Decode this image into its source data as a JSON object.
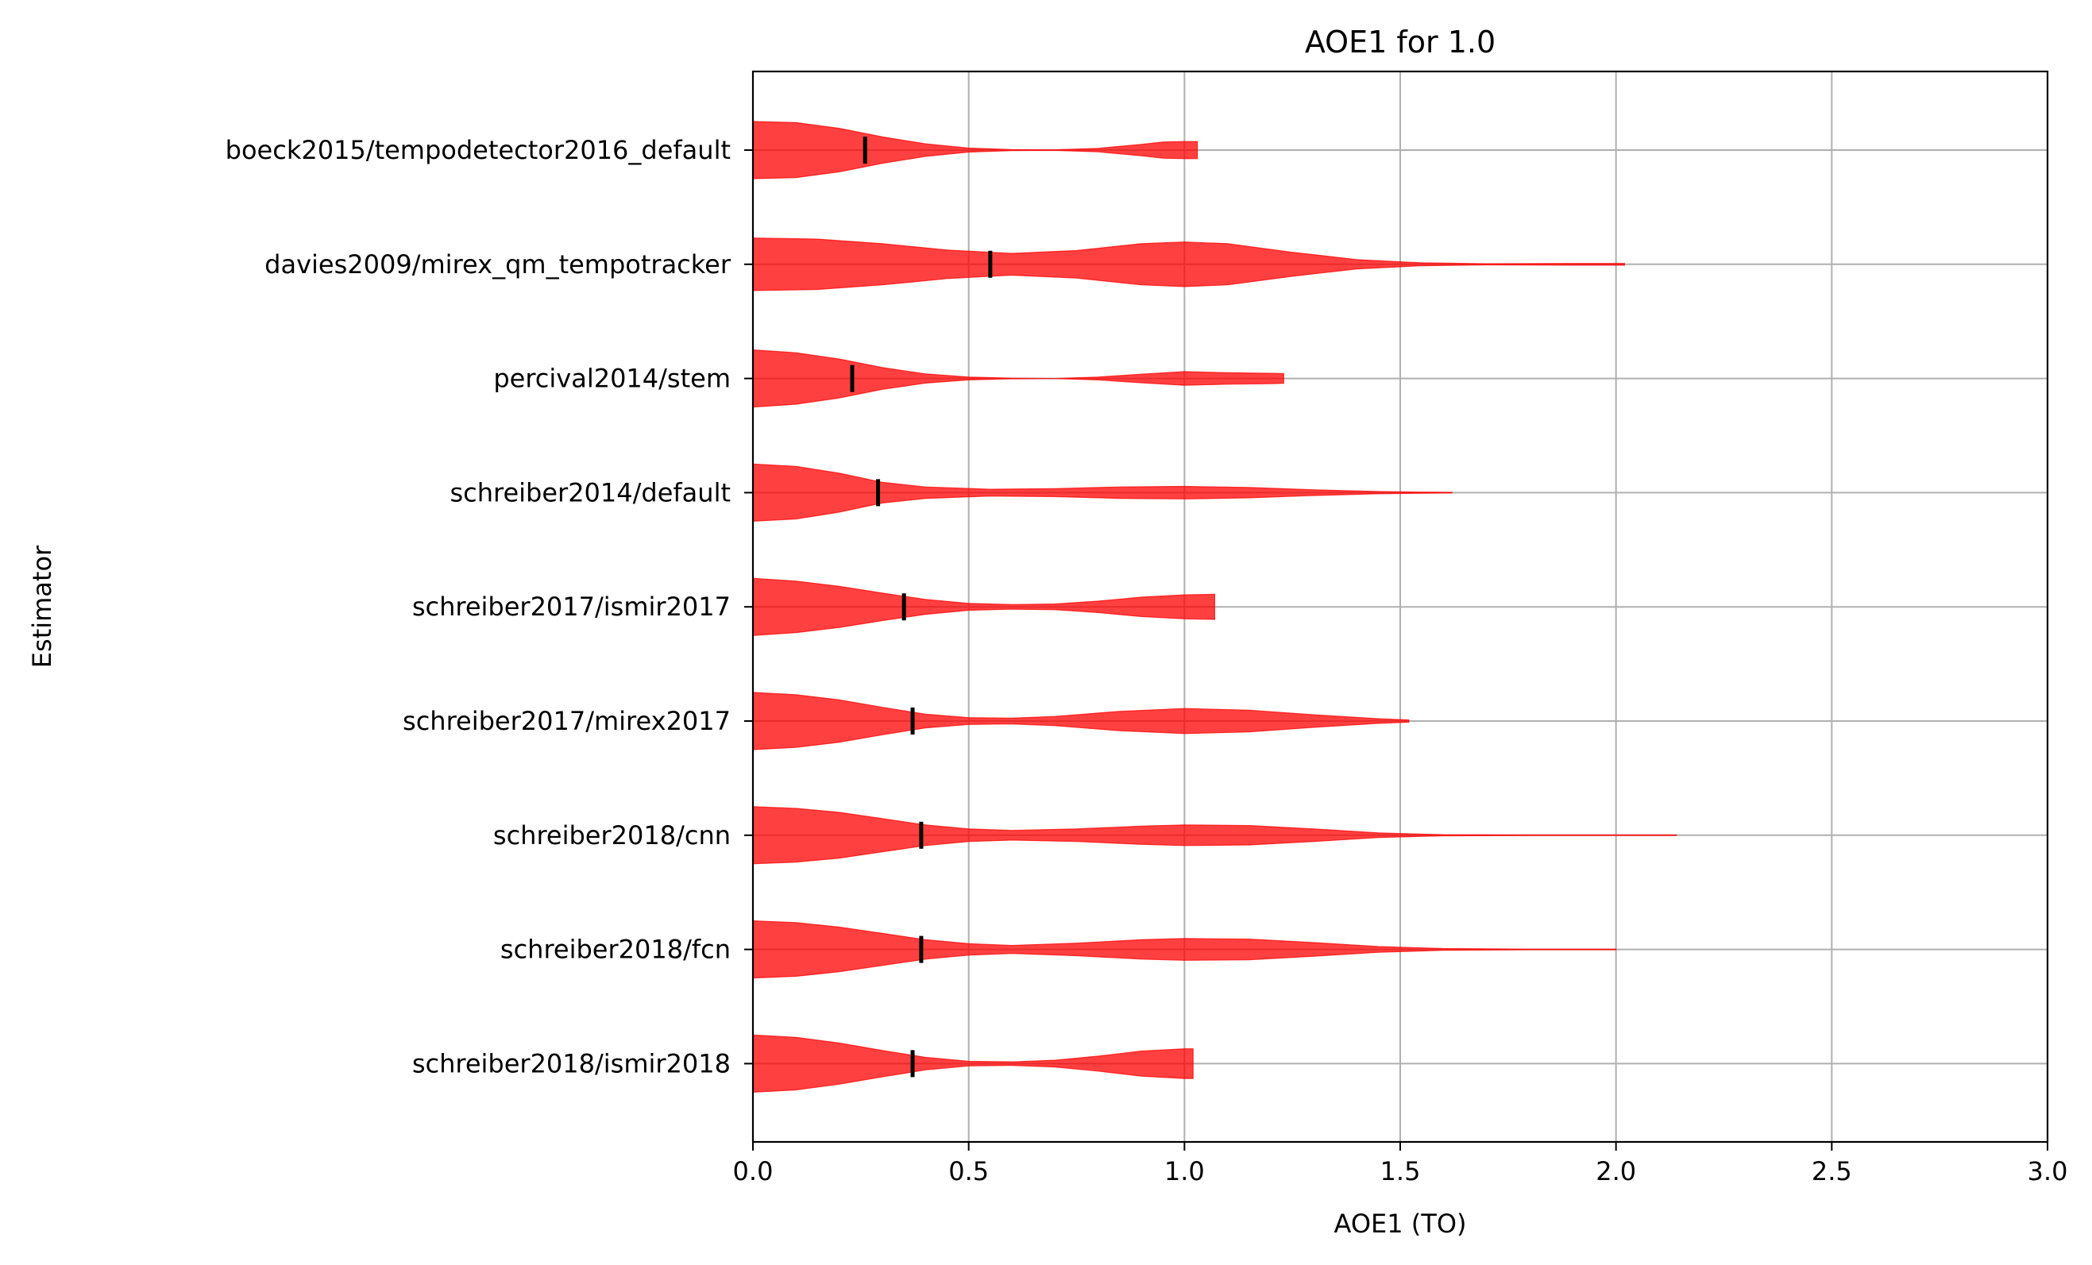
{
  "chart_data": {
    "type": "violin",
    "title": "AOE1 for 1.0",
    "xlabel": "AOE1 (TO)",
    "ylabel": "Estimator",
    "xlim": [
      0.0,
      3.0
    ],
    "x_ticks": [
      "0.0",
      "0.5",
      "1.0",
      "1.5",
      "2.0",
      "2.5",
      "3.0"
    ],
    "grid": true,
    "orientation": "horizontal",
    "colors": {
      "violin": "#ff0000",
      "marker": "#000000",
      "grid": "#b0b0b0"
    },
    "categories": [
      "boeck2015/tempodetector2016_default",
      "davies2009/mirex_qm_tempotracker",
      "percival2014/stem",
      "schreiber2014/default",
      "schreiber2017/ismir2017",
      "schreiber2017/mirex2017",
      "schreiber2018/cnn",
      "schreiber2018/fcn",
      "schreiber2018/ismir2018"
    ],
    "series": [
      {
        "label": "boeck2015/tempodetector2016_default",
        "min": 0.0,
        "max": 1.03,
        "mean": 0.26,
        "density": [
          [
            0.0,
            1.0
          ],
          [
            0.1,
            0.96
          ],
          [
            0.2,
            0.76
          ],
          [
            0.3,
            0.46
          ],
          [
            0.4,
            0.22
          ],
          [
            0.5,
            0.07
          ],
          [
            0.6,
            0.02
          ],
          [
            0.7,
            0.01
          ],
          [
            0.8,
            0.06
          ],
          [
            0.9,
            0.2
          ],
          [
            0.95,
            0.28
          ],
          [
            1.0,
            0.3
          ],
          [
            1.03,
            0.3
          ]
        ]
      },
      {
        "label": "davies2009/mirex_qm_tempotracker",
        "min": 0.0,
        "max": 2.02,
        "mean": 0.55,
        "density": [
          [
            0.0,
            0.92
          ],
          [
            0.15,
            0.88
          ],
          [
            0.3,
            0.72
          ],
          [
            0.45,
            0.5
          ],
          [
            0.6,
            0.38
          ],
          [
            0.75,
            0.48
          ],
          [
            0.9,
            0.72
          ],
          [
            1.0,
            0.78
          ],
          [
            1.1,
            0.72
          ],
          [
            1.25,
            0.42
          ],
          [
            1.4,
            0.16
          ],
          [
            1.55,
            0.05
          ],
          [
            1.7,
            0.02
          ],
          [
            1.9,
            0.03
          ],
          [
            2.02,
            0.03
          ]
        ]
      },
      {
        "label": "percival2014/stem",
        "min": 0.0,
        "max": 1.23,
        "mean": 0.23,
        "density": [
          [
            0.0,
            1.0
          ],
          [
            0.1,
            0.9
          ],
          [
            0.2,
            0.68
          ],
          [
            0.3,
            0.38
          ],
          [
            0.4,
            0.16
          ],
          [
            0.5,
            0.05
          ],
          [
            0.6,
            0.01
          ],
          [
            0.7,
            0.0
          ],
          [
            0.8,
            0.05
          ],
          [
            0.9,
            0.15
          ],
          [
            1.0,
            0.24
          ],
          [
            1.1,
            0.2
          ],
          [
            1.2,
            0.18
          ],
          [
            1.23,
            0.17
          ]
        ]
      },
      {
        "label": "schreiber2014/default",
        "min": 0.0,
        "max": 1.62,
        "mean": 0.29,
        "density": [
          [
            0.0,
            1.0
          ],
          [
            0.1,
            0.92
          ],
          [
            0.2,
            0.68
          ],
          [
            0.3,
            0.36
          ],
          [
            0.4,
            0.2
          ],
          [
            0.55,
            0.12
          ],
          [
            0.7,
            0.14
          ],
          [
            0.85,
            0.2
          ],
          [
            1.0,
            0.22
          ],
          [
            1.15,
            0.18
          ],
          [
            1.3,
            0.1
          ],
          [
            1.45,
            0.04
          ],
          [
            1.55,
            0.02
          ],
          [
            1.62,
            0.01
          ]
        ]
      },
      {
        "label": "schreiber2017/ismir2017",
        "min": 0.0,
        "max": 1.07,
        "mean": 0.35,
        "density": [
          [
            0.0,
            1.0
          ],
          [
            0.1,
            0.9
          ],
          [
            0.2,
            0.72
          ],
          [
            0.3,
            0.48
          ],
          [
            0.4,
            0.26
          ],
          [
            0.5,
            0.12
          ],
          [
            0.6,
            0.08
          ],
          [
            0.7,
            0.1
          ],
          [
            0.8,
            0.2
          ],
          [
            0.9,
            0.34
          ],
          [
            1.0,
            0.42
          ],
          [
            1.07,
            0.44
          ]
        ]
      },
      {
        "label": "schreiber2017/mirex2017",
        "min": 0.0,
        "max": 1.52,
        "mean": 0.37,
        "density": [
          [
            0.0,
            1.0
          ],
          [
            0.1,
            0.92
          ],
          [
            0.2,
            0.74
          ],
          [
            0.3,
            0.48
          ],
          [
            0.4,
            0.24
          ],
          [
            0.5,
            0.12
          ],
          [
            0.6,
            0.1
          ],
          [
            0.7,
            0.16
          ],
          [
            0.85,
            0.34
          ],
          [
            1.0,
            0.44
          ],
          [
            1.15,
            0.38
          ],
          [
            1.3,
            0.22
          ],
          [
            1.45,
            0.08
          ],
          [
            1.52,
            0.04
          ]
        ]
      },
      {
        "label": "schreiber2018/cnn",
        "min": 0.0,
        "max": 2.14,
        "mean": 0.39,
        "density": [
          [
            0.0,
            1.0
          ],
          [
            0.1,
            0.94
          ],
          [
            0.2,
            0.8
          ],
          [
            0.3,
            0.58
          ],
          [
            0.4,
            0.36
          ],
          [
            0.5,
            0.22
          ],
          [
            0.6,
            0.17
          ],
          [
            0.75,
            0.22
          ],
          [
            0.9,
            0.32
          ],
          [
            1.0,
            0.36
          ],
          [
            1.15,
            0.34
          ],
          [
            1.3,
            0.22
          ],
          [
            1.45,
            0.08
          ],
          [
            1.6,
            0.02
          ],
          [
            1.8,
            0.01
          ],
          [
            2.0,
            0.01
          ],
          [
            2.14,
            0.01
          ]
        ]
      },
      {
        "label": "schreiber2018/fcn",
        "min": 0.0,
        "max": 2.0,
        "mean": 0.39,
        "density": [
          [
            0.0,
            1.0
          ],
          [
            0.1,
            0.94
          ],
          [
            0.2,
            0.78
          ],
          [
            0.3,
            0.56
          ],
          [
            0.4,
            0.34
          ],
          [
            0.5,
            0.2
          ],
          [
            0.6,
            0.14
          ],
          [
            0.75,
            0.22
          ],
          [
            0.9,
            0.34
          ],
          [
            1.0,
            0.38
          ],
          [
            1.15,
            0.36
          ],
          [
            1.3,
            0.24
          ],
          [
            1.45,
            0.1
          ],
          [
            1.6,
            0.03
          ],
          [
            1.8,
            0.01
          ],
          [
            2.0,
            0.01
          ]
        ]
      },
      {
        "label": "schreiber2018/ismir2018",
        "min": 0.0,
        "max": 1.02,
        "mean": 0.37,
        "density": [
          [
            0.0,
            1.0
          ],
          [
            0.1,
            0.92
          ],
          [
            0.2,
            0.72
          ],
          [
            0.3,
            0.46
          ],
          [
            0.4,
            0.22
          ],
          [
            0.5,
            0.08
          ],
          [
            0.6,
            0.06
          ],
          [
            0.7,
            0.12
          ],
          [
            0.8,
            0.26
          ],
          [
            0.9,
            0.44
          ],
          [
            1.0,
            0.52
          ],
          [
            1.02,
            0.52
          ]
        ]
      }
    ]
  }
}
